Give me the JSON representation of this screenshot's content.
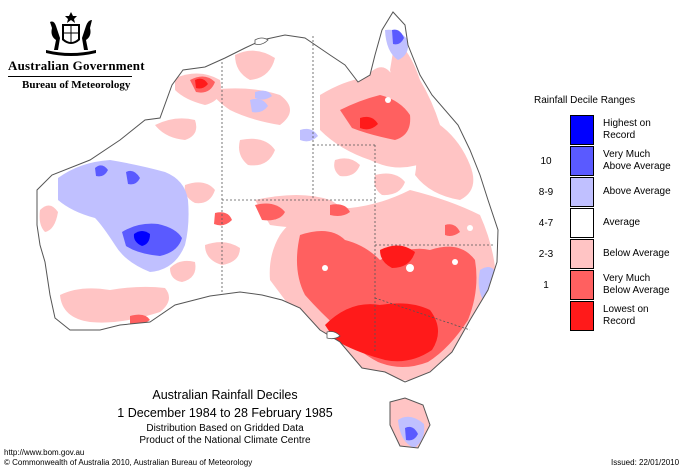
{
  "header": {
    "government": "Australian Government",
    "bureau": "Bureau of Meteorology"
  },
  "legend": {
    "title": "Rainfall Decile Ranges",
    "items": [
      {
        "range": "",
        "label_line1": "Highest on",
        "label_line2": "Record",
        "color": "#0000ff"
      },
      {
        "range": "10",
        "label_line1": "Very Much",
        "label_line2": "Above Average",
        "color": "#5a5aff"
      },
      {
        "range": "8-9",
        "label_line1": "Above Average",
        "label_line2": "",
        "color": "#c0c0ff"
      },
      {
        "range": "4-7",
        "label_line1": "Average",
        "label_line2": "",
        "color": "#ffffff"
      },
      {
        "range": "2-3",
        "label_line1": "Below Average",
        "label_line2": "",
        "color": "#ffc4c4"
      },
      {
        "range": "1",
        "label_line1": "Very Much",
        "label_line2": "Below Average",
        "color": "#ff6060"
      },
      {
        "range": "",
        "label_line1": "Lowest on",
        "label_line2": "Record",
        "color": "#ff1a1a"
      }
    ]
  },
  "map": {
    "title": "Australian Rainfall Deciles",
    "subtitle": "1 December 1984 to 28 February 1985",
    "note_line1": "Distribution Based on Gridded Data",
    "note_line2": "Product of the National Climate Centre"
  },
  "footer": {
    "url": "http://www.bom.gov.au",
    "copyright": "© Commonwealth of Australia 2010, Australian Bureau of Meteorology",
    "issued": "Issued: 22/01/2010"
  },
  "colors": {
    "highest": "#0000ff",
    "very_much_above": "#5a5aff",
    "above": "#c0c0ff",
    "average": "#ffffff",
    "below": "#ffc4c4",
    "very_much_below": "#ff6060",
    "lowest": "#ff1a1a"
  }
}
